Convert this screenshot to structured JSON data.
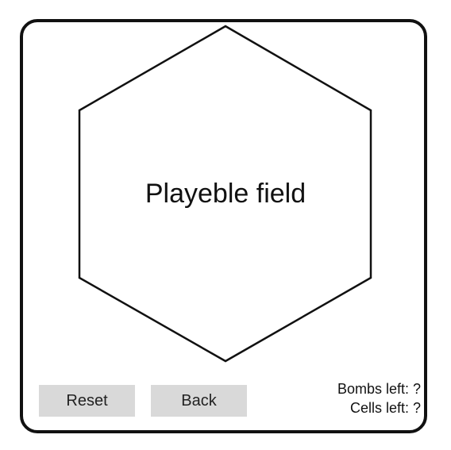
{
  "game": {
    "field_label": "Playeble field",
    "field_shape": "hexagon"
  },
  "controls": {
    "reset_label": "Reset",
    "back_label": "Back"
  },
  "stats": {
    "bombs_label": "Bombs left: ?",
    "cells_label": "Cells left: ?"
  },
  "colors": {
    "border": "#111111",
    "button_bg": "#d9d9d9",
    "background": "#ffffff"
  }
}
